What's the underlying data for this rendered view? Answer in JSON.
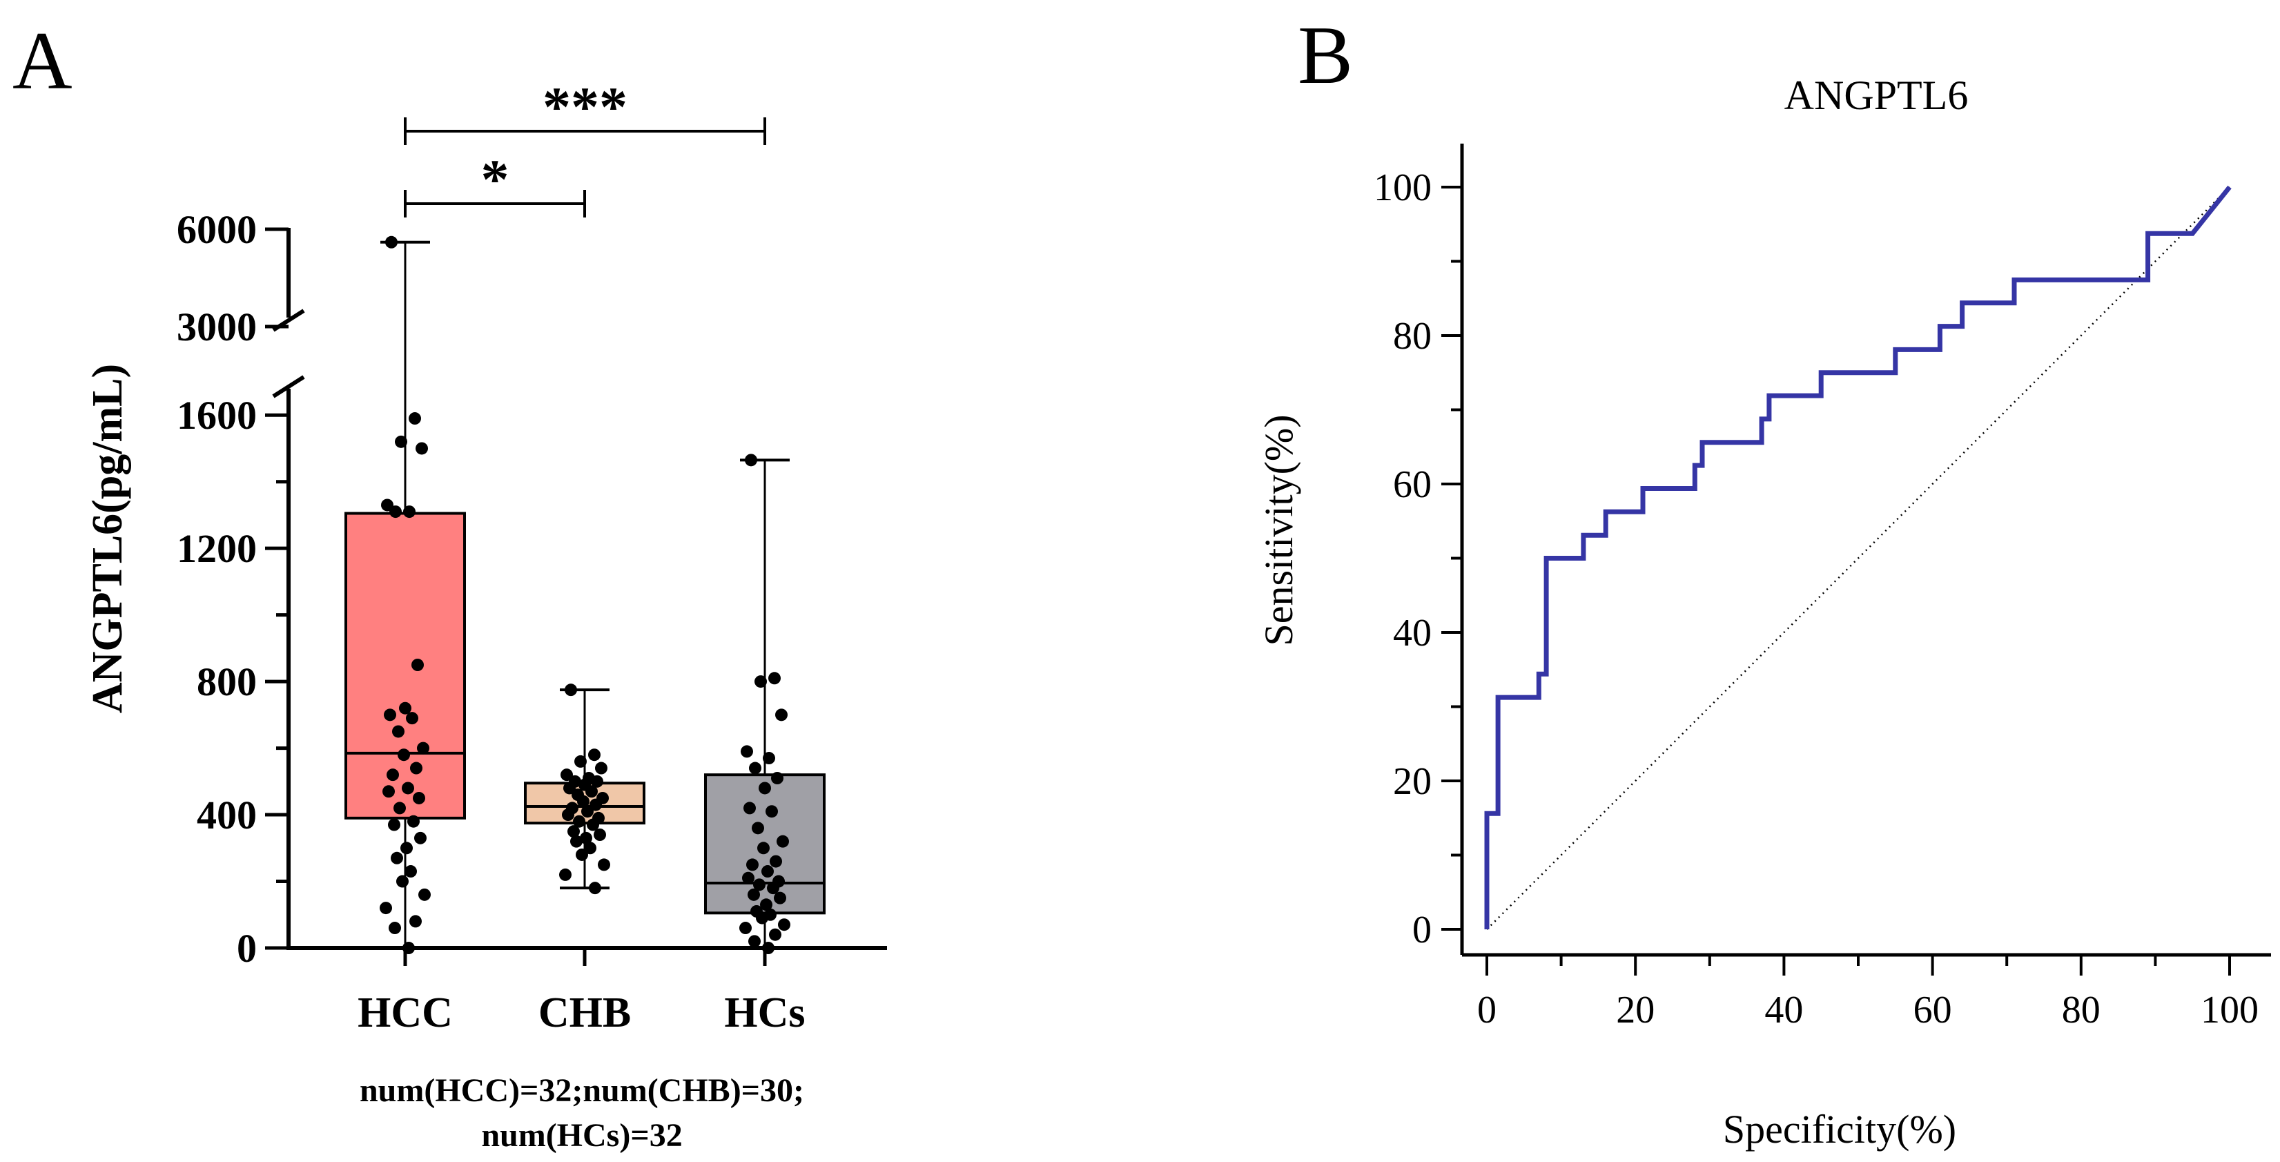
{
  "chart_data": [
    {
      "panel": "A",
      "type": "box",
      "ylabel": "ANGPTL6(pg/mL)",
      "xlabel": "",
      "axis_break": true,
      "lower_segment": {
        "ylim": [
          0,
          1700
        ],
        "ticks": [
          0,
          400,
          800,
          1200,
          1600
        ]
      },
      "upper_segment": {
        "ylim": [
          3000,
          6000
        ],
        "ticks": [
          3000,
          6000
        ]
      },
      "categories": [
        "HCC",
        "CHB",
        "HCs"
      ],
      "colors": {
        "HCC": "#ff8080",
        "CHB": "#f0c7a8",
        "HCs": "#a0a0a6"
      },
      "boxes": [
        {
          "name": "HCC",
          "min": 0,
          "q1": 390,
          "median": 585,
          "q3": 1305,
          "max": 5600
        },
        {
          "name": "CHB",
          "min": 180,
          "q1": 375,
          "median": 425,
          "q3": 495,
          "max": 775
        },
        {
          "name": "HCs",
          "min": 0,
          "q1": 105,
          "median": 195,
          "q3": 520,
          "max": 1465
        }
      ],
      "points": {
        "HCC": [
          5600,
          1590,
          1520,
          1500,
          1330,
          1310,
          1310,
          850,
          720,
          700,
          690,
          650,
          600,
          580,
          540,
          520,
          480,
          470,
          450,
          420,
          380,
          370,
          330,
          300,
          270,
          230,
          200,
          160,
          120,
          80,
          60,
          0
        ],
        "CHB": [
          775,
          580,
          560,
          540,
          520,
          510,
          500,
          500,
          490,
          480,
          470,
          460,
          450,
          440,
          430,
          420,
          410,
          400,
          390,
          380,
          370,
          350,
          340,
          330,
          320,
          300,
          280,
          250,
          220,
          180
        ],
        "HCs": [
          1465,
          810,
          800,
          700,
          590,
          570,
          540,
          510,
          480,
          420,
          410,
          360,
          320,
          300,
          260,
          250,
          230,
          210,
          200,
          190,
          180,
          160,
          150,
          130,
          110,
          100,
          90,
          70,
          60,
          40,
          20,
          0
        ]
      },
      "significance": [
        {
          "from": "HCC",
          "to": "CHB",
          "label": "*"
        },
        {
          "from": "HCC",
          "to": "HCs",
          "label": "***"
        }
      ],
      "note_lines": [
        "num(HCC)=32;num(CHB)=30;",
        "num(HCs)=32"
      ]
    },
    {
      "panel": "B",
      "type": "line",
      "title": "ANGPTL6",
      "xlabel": "Specificity(%)",
      "ylabel": "Sensitivity(%)",
      "xlim": [
        0,
        100
      ],
      "ylim": [
        0,
        100
      ],
      "xticks": [
        0,
        20,
        40,
        60,
        80,
        100
      ],
      "yticks": [
        0,
        20,
        40,
        60,
        80,
        100
      ],
      "series": [
        {
          "color": "#3535a5",
          "x": [
            0,
            0,
            1.5,
            1.5,
            7,
            7,
            8,
            8,
            13,
            13,
            16,
            16,
            21,
            21,
            28,
            28,
            29,
            29,
            37,
            37,
            38,
            38,
            45,
            45,
            55,
            55,
            61,
            61,
            64,
            64,
            71,
            71,
            89,
            89,
            95,
            100
          ],
          "y": [
            0,
            15.6,
            15.6,
            31.25,
            31.25,
            34.4,
            34.4,
            50,
            50,
            53.1,
            53.1,
            56.25,
            56.25,
            59.4,
            59.4,
            62.5,
            62.5,
            65.6,
            65.6,
            68.75,
            68.75,
            71.9,
            71.9,
            75,
            75,
            78.1,
            78.1,
            81.25,
            81.25,
            84.4,
            84.4,
            87.5,
            87.5,
            93.75,
            93.75,
            100
          ]
        }
      ],
      "reference_line": {
        "x": [
          0,
          100
        ],
        "y": [
          0,
          100
        ]
      }
    }
  ]
}
